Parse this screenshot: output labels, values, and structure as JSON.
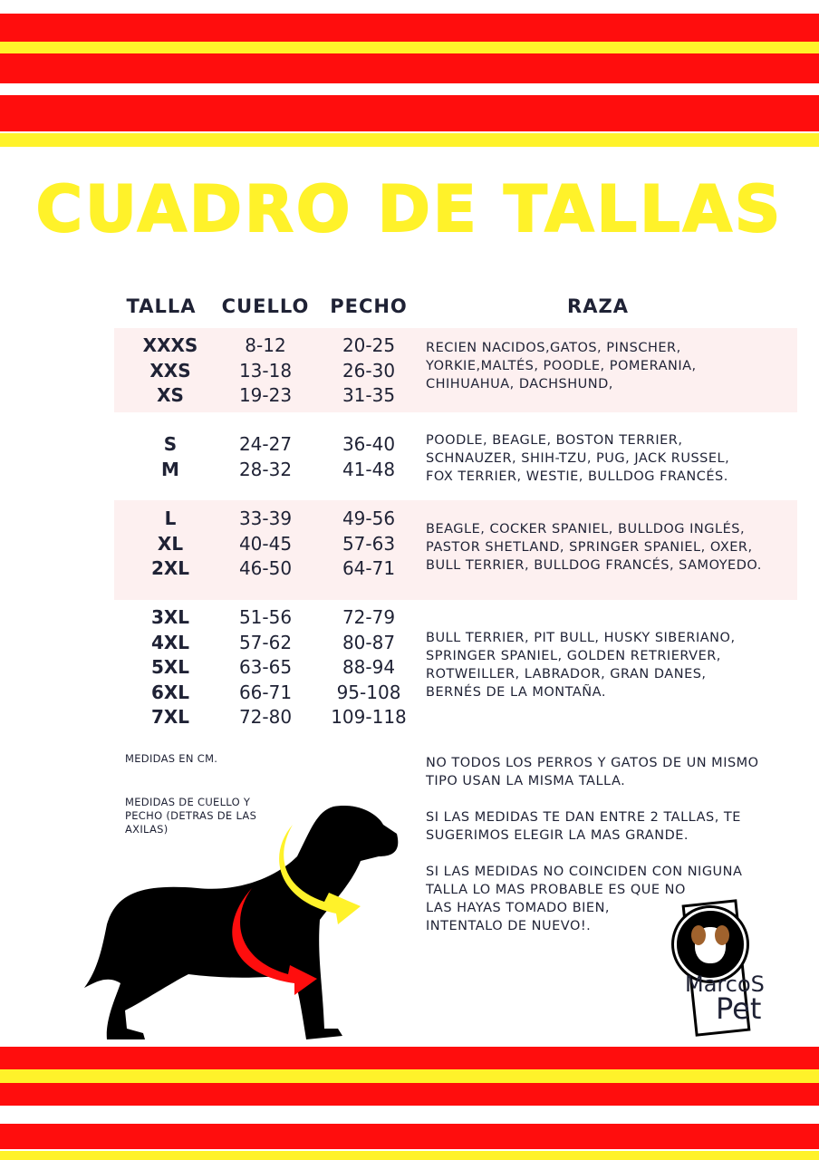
{
  "colors": {
    "red": "#ff0d0d",
    "yellow": "#fff22a",
    "band": "#fdf0f0",
    "text": "#1f2235"
  },
  "title": "CUADRO DE TALLAS",
  "headers": {
    "talla": "TALLA",
    "cuello": "CUELLO",
    "pecho": "PECHO",
    "raza": "RAZA"
  },
  "groups": [
    {
      "tallas": [
        "XXXS",
        "XXS",
        "XS"
      ],
      "cuello": [
        "8-12",
        "13-18",
        "19-23"
      ],
      "pecho": [
        "20-25",
        "26-30",
        "31-35"
      ],
      "raza": [
        "RECIEN NACIDOS,GATOS, PINSCHER,",
        "YORKIE,MALTÉS, POODLE, POMERANIA,",
        "CHIHUAHUA, DACHSHUND,"
      ]
    },
    {
      "tallas": [
        "S",
        "M"
      ],
      "cuello": [
        "24-27",
        "28-32"
      ],
      "pecho": [
        "36-40",
        "41-48"
      ],
      "raza": [
        "POODLE, BEAGLE, BOSTON TERRIER,",
        "SCHNAUZER, SHIH-TZU, PUG, JACK RUSSEL,",
        "FOX TERRIER, WESTIE, BULLDOG FRANCÉS."
      ]
    },
    {
      "tallas": [
        "L",
        "XL",
        "2XL"
      ],
      "cuello": [
        "33-39",
        "40-45",
        "46-50"
      ],
      "pecho": [
        "49-56",
        "57-63",
        "64-71"
      ],
      "raza": [
        "BEAGLE, COCKER SPANIEL, BULLDOG INGLÉS,",
        "PASTOR SHETLAND, SPRINGER SPANIEL, OXER,",
        "BULL TERRIER, BULLDOG FRANCÉS, SAMOYEDO."
      ]
    },
    {
      "tallas": [
        "3XL",
        "4XL",
        "5XL",
        "6XL",
        "7XL"
      ],
      "cuello": [
        "51-56",
        "57-62",
        "63-65",
        "66-71",
        "72-80"
      ],
      "pecho": [
        "72-79",
        "80-87",
        "88-94",
        "95-108",
        "109-118"
      ],
      "raza": [
        "BULL TERRIER, PIT BULL, HUSKY SIBERIANO,",
        "SPRINGER SPANIEL, GOLDEN RETRIERVER,",
        "ROTWEILLER, LABRADOR, GRAN DANES,",
        "BERNÉS DE LA MONTAÑA."
      ]
    }
  ],
  "notes_left": [
    "MEDIDAS EN CM.",
    "MEDIDAS DE CUELLO Y",
    "PECHO (DETRAS DE LAS",
    "AXILAS)"
  ],
  "notes_right": [
    "NO TODOS LOS PERROS Y GATOS DE UN MISMO",
    "TIPO USAN LA MISMA TALLA.",
    "SI LAS MEDIDAS TE DAN ENTRE 2 TALLAS, TE",
    "SUGERIMOS ELEGIR LA MAS GRANDE.",
    "SI LAS MEDIDAS NO COINCIDEN CON NIGUNA",
    "TALLA LO MAS PROBABLE ES QUE NO",
    "LAS HAYAS TOMADO BIEN,",
    "INTENTALO DE NUEVO!."
  ],
  "logo": {
    "line1": "MarcoS",
    "line2": "Pet"
  }
}
